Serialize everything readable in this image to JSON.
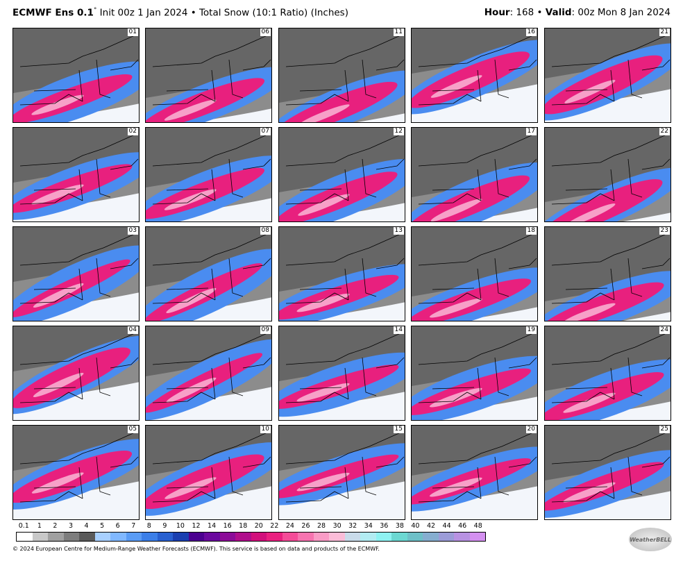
{
  "header": {
    "model": "ECMWF Ens 0.1",
    "degree": "°",
    "description": "Init 00z 1 Jan 2024 • Total Snow (10:1 Ratio) (Inches)",
    "hour_key": "Hour",
    "hour_value": ": 168 • ",
    "valid_key": "Valid",
    "valid_value": ": 00z Mon 8 Jan 2024"
  },
  "panels": [
    "01",
    "02",
    "03",
    "04",
    "05",
    "06",
    "07",
    "08",
    "09",
    "10",
    "11",
    "12",
    "13",
    "14",
    "15",
    "16",
    "17",
    "18",
    "19",
    "20",
    "21",
    "22",
    "23",
    "24",
    "25"
  ],
  "colorbar": {
    "labels": [
      "0.1",
      "1",
      "2",
      "3",
      "4",
      "5",
      "6",
      "7",
      "8",
      "9",
      "10",
      "12",
      "14",
      "16",
      "18",
      "20",
      "22",
      "24",
      "26",
      "28",
      "30",
      "32",
      "34",
      "36",
      "38",
      "40",
      "42",
      "44",
      "46",
      "48"
    ],
    "colors": [
      "#ffffff",
      "#c8c8c8",
      "#a0a0a0",
      "#7d7d7d",
      "#5a5a5a",
      "#a8d0ff",
      "#80b8ff",
      "#5a9cf5",
      "#3c7fe8",
      "#2860d0",
      "#1a3fb0",
      "#4b0090",
      "#6a089e",
      "#8c0c98",
      "#b00e8c",
      "#d2107c",
      "#ea2080",
      "#f44c98",
      "#f774b0",
      "#f99cc6",
      "#fbbcd8",
      "#c9dbea",
      "#b2ecf2",
      "#8ef2f2",
      "#6cd8d2",
      "#6ec0c8",
      "#86aed0",
      "#9c9cd8",
      "#b892e2",
      "#d490f0"
    ]
  },
  "footer": "© 2024 European Centre for Medium-Range Weather Forecasts (ECMWF). This service is based on data and products of the ECMWF.",
  "logo": "WeatherBELL"
}
